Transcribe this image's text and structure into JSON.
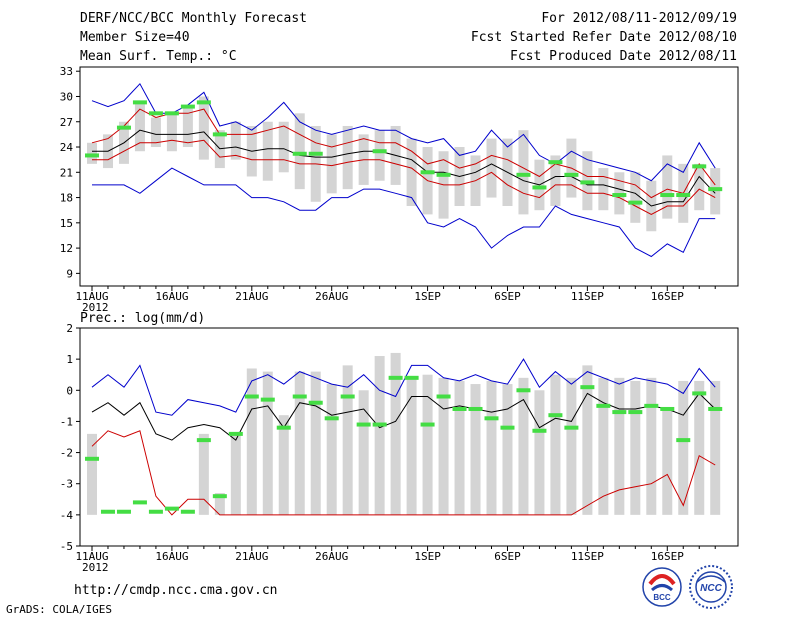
{
  "header": {
    "title": "DERF/NCC/BCC Monthly Forecast",
    "member_size": "Member Size=40",
    "variable": "Mean Surf. Temp.: °C",
    "period": "For 2012/08/11-2012/09/19",
    "started": "Fcst Started Refer Date 2012/08/10",
    "produced": "Fcst Produced Date 2012/08/11"
  },
  "footer": {
    "url": "http://cmdp.ncc.cma.gov.cn",
    "grads": "GrADS: COLA/IGES",
    "logo_bcc": "BCC",
    "logo_ncc": "NCC"
  },
  "colors": {
    "max": "#0000cc",
    "min": "#0000cc",
    "mean": "#000000",
    "spread": "#cc0000",
    "box": "#d4d4d4",
    "obs": "#44dd44"
  },
  "chart_data": [
    {
      "type": "box-line",
      "title": "Mean Surf. Temp.: °C",
      "categories": [
        "11AUG",
        "12AUG",
        "13AUG",
        "14AUG",
        "15AUG",
        "16AUG",
        "17AUG",
        "18AUG",
        "19AUG",
        "20AUG",
        "21AUG",
        "22AUG",
        "23AUG",
        "24AUG",
        "25AUG",
        "26AUG",
        "27AUG",
        "28AUG",
        "29AUG",
        "30AUG",
        "31AUG",
        "1SEP",
        "2SEP",
        "3SEP",
        "4SEP",
        "5SEP",
        "6SEP",
        "7SEP",
        "8SEP",
        "9SEP",
        "10SEP",
        "11SEP",
        "12SEP",
        "13SEP",
        "14SEP",
        "15SEP",
        "16SEP",
        "17SEP",
        "18SEP",
        "19SEP"
      ],
      "xtick_labels": [
        "11AUG",
        "16AUG",
        "21AUG",
        "26AUG",
        "1SEP",
        "6SEP",
        "11SEP",
        "16SEP"
      ],
      "xtick_index": [
        0,
        5,
        10,
        15,
        21,
        26,
        31,
        36
      ],
      "year_label": "2012",
      "ylim": [
        7.5,
        33.5
      ],
      "yticks": [
        9,
        12,
        15,
        18,
        21,
        24,
        27,
        30,
        33
      ],
      "series": [
        {
          "name": "max",
          "values": [
            29.5,
            28.8,
            29.5,
            31.5,
            28,
            28,
            29,
            30.5,
            26.5,
            27,
            26,
            27.5,
            29.3,
            27,
            26,
            25.5,
            26,
            26.5,
            26,
            26,
            25,
            24.5,
            25,
            23,
            23.5,
            26,
            24,
            25.5,
            23,
            22,
            23.5,
            22.5,
            22,
            21.5,
            21,
            20,
            22,
            21,
            24.5,
            21.5
          ]
        },
        {
          "name": "upper",
          "values": [
            24.5,
            25,
            26.5,
            28.5,
            27.5,
            28,
            28,
            28.5,
            25.5,
            25.5,
            25.5,
            26,
            26.5,
            25.5,
            24.5,
            24,
            24.5,
            25,
            24.5,
            24.5,
            23.5,
            22,
            22.5,
            21.5,
            22,
            23,
            22.5,
            21.5,
            20.5,
            22,
            21.5,
            20.5,
            20.5,
            20,
            19.5,
            18,
            19,
            18.5,
            22,
            19.5
          ]
        },
        {
          "name": "mean",
          "values": [
            23.5,
            23.5,
            24.5,
            26,
            25.5,
            25.5,
            25.5,
            25.8,
            23.8,
            24,
            23.5,
            23.8,
            23.8,
            23,
            22.8,
            22.8,
            23.2,
            23.5,
            23.5,
            23,
            22.5,
            21,
            21,
            20.5,
            21,
            22,
            21,
            20,
            19.5,
            20.5,
            20.5,
            19.5,
            19.5,
            19,
            18.5,
            17,
            17.5,
            17.5,
            20.5,
            18.5
          ]
        },
        {
          "name": "lower",
          "values": [
            22.5,
            22.5,
            23.5,
            24.5,
            24.5,
            24.8,
            24.5,
            24.8,
            22.8,
            23,
            22.5,
            22.5,
            22.5,
            22,
            22,
            21.8,
            22.2,
            22.5,
            22.5,
            22,
            21.5,
            20,
            19.5,
            19.5,
            20,
            21,
            19.5,
            18.5,
            18,
            19.5,
            19.5,
            18.5,
            18.5,
            18,
            17,
            16,
            17,
            17,
            19,
            18
          ]
        },
        {
          "name": "min",
          "values": [
            19.5,
            19.5,
            19.5,
            18.5,
            20,
            21.5,
            20.5,
            19.5,
            19.5,
            19.5,
            18,
            18,
            17.5,
            16.5,
            16.5,
            18,
            18,
            19,
            19,
            18.5,
            18,
            15,
            14.5,
            15.5,
            14.5,
            12,
            13.5,
            14.5,
            14.5,
            17,
            16,
            15.5,
            15,
            14.5,
            12,
            11,
            12.5,
            11.5,
            15.5,
            15.5
          ]
        },
        {
          "name": "box_high",
          "values": [
            24.5,
            25.5,
            27,
            29.5,
            27.5,
            28,
            29,
            30,
            26,
            27,
            26.5,
            27,
            27,
            28,
            26.5,
            25.5,
            26.5,
            25.5,
            26,
            26.5,
            25,
            24,
            23.5,
            24,
            23,
            25,
            25,
            26,
            22.5,
            23,
            25,
            23.5,
            21.5,
            21,
            21,
            20,
            23,
            22,
            22,
            21.5
          ]
        },
        {
          "name": "box_low",
          "values": [
            22,
            21.5,
            22,
            23.5,
            24,
            23.5,
            24,
            22.5,
            21.5,
            22.5,
            20.5,
            20,
            21,
            19,
            17.5,
            18.5,
            19,
            19.5,
            20,
            19.5,
            17,
            16,
            15.5,
            17,
            17,
            18,
            17,
            16,
            16.5,
            17,
            18,
            16.5,
            16.5,
            16,
            15,
            14,
            15.5,
            15,
            16.5,
            16
          ]
        },
        {
          "name": "obs",
          "values": [
            23,
            null,
            26.3,
            29.3,
            28,
            28,
            28.8,
            29.3,
            25.5,
            null,
            null,
            null,
            null,
            23.2,
            23.2,
            null,
            null,
            null,
            23.5,
            null,
            null,
            21,
            20.7,
            null,
            null,
            null,
            null,
            20.7,
            19.2,
            22.2,
            20.7,
            19.8,
            null,
            18.3,
            17.4,
            null,
            18.3,
            18.3,
            21.7,
            19
          ]
        }
      ]
    },
    {
      "type": "box-line",
      "title": "Prec.: log(mm/d)",
      "categories": [
        "11AUG",
        "12AUG",
        "13AUG",
        "14AUG",
        "15AUG",
        "16AUG",
        "17AUG",
        "18AUG",
        "19AUG",
        "20AUG",
        "21AUG",
        "22AUG",
        "23AUG",
        "24AUG",
        "25AUG",
        "26AUG",
        "27AUG",
        "28AUG",
        "29AUG",
        "30AUG",
        "31AUG",
        "1SEP",
        "2SEP",
        "3SEP",
        "4SEP",
        "5SEP",
        "6SEP",
        "7SEP",
        "8SEP",
        "9SEP",
        "10SEP",
        "11SEP",
        "12SEP",
        "13SEP",
        "14SEP",
        "15SEP",
        "16SEP",
        "17SEP",
        "18SEP",
        "19SEP"
      ],
      "xtick_labels": [
        "11AUG",
        "16AUG",
        "21AUG",
        "26AUG",
        "1SEP",
        "6SEP",
        "11SEP",
        "16SEP"
      ],
      "xtick_index": [
        0,
        5,
        10,
        15,
        21,
        26,
        31,
        36
      ],
      "year_label": "2012",
      "ylim": [
        -5,
        2
      ],
      "yticks": [
        -5,
        -4,
        -3,
        -2,
        -1,
        0,
        1,
        2
      ],
      "series": [
        {
          "name": "max",
          "values": [
            0.1,
            0.5,
            0.1,
            0.8,
            -0.7,
            -0.8,
            -0.3,
            -0.4,
            -0.5,
            -0.7,
            0.3,
            0.5,
            0.2,
            0.6,
            0.4,
            0.2,
            0.1,
            0.5,
            0,
            -0.2,
            0.8,
            0.8,
            0.4,
            0.3,
            0.5,
            0.3,
            0.2,
            1,
            0.1,
            0.6,
            0.2,
            0.6,
            0.4,
            0.2,
            0.4,
            0.3,
            0.2,
            -0.1,
            0.7,
            0.1
          ]
        },
        {
          "name": "mean",
          "values": [
            -0.7,
            -0.4,
            -0.8,
            -0.4,
            -1.4,
            -1.6,
            -1.2,
            -1.1,
            -1.2,
            -1.6,
            -0.6,
            -0.5,
            -1.2,
            -0.4,
            -0.5,
            -0.8,
            -0.7,
            -0.6,
            -1.2,
            -1,
            -0.2,
            -0.2,
            -0.6,
            -0.5,
            -0.6,
            -0.7,
            -0.6,
            -0.3,
            -1.2,
            -0.9,
            -1,
            -0.1,
            -0.4,
            -0.6,
            -0.6,
            -0.5,
            -0.6,
            -0.8,
            -0.1,
            -0.6
          ]
        },
        {
          "name": "spread",
          "values": [
            -1.8,
            -1.3,
            -1.5,
            -1.3,
            -3.4,
            -4,
            -3.5,
            -3.5,
            -4,
            -4,
            -4,
            -4,
            -4,
            -4,
            -4,
            -4,
            -4,
            -4,
            -4,
            -4,
            -4,
            -4,
            -4,
            -4,
            -4,
            -4,
            -4,
            -4,
            -4,
            -4,
            -4,
            -3.7,
            -3.4,
            -3.2,
            -3.1,
            -3,
            -2.7,
            -3.7,
            -2.1,
            -2.4
          ]
        },
        {
          "name": "box_high",
          "values": [
            -1.4,
            -4,
            -4,
            -4,
            -4,
            -4,
            -4,
            -1.4,
            -3.3,
            -1.4,
            0.7,
            0.6,
            -0.8,
            0.6,
            0.6,
            0.2,
            0.8,
            0,
            1.1,
            1.2,
            0.4,
            0.5,
            0.4,
            0.3,
            0.2,
            0.3,
            0.2,
            0.4,
            0,
            0.5,
            0.4,
            0.8,
            0.4,
            0.4,
            0.3,
            0.4,
            -0.6,
            0.3,
            0.3,
            0.3
          ]
        },
        {
          "name": "box_low",
          "values": [
            -4,
            -4,
            -4,
            -4,
            -4,
            -4,
            -4,
            -4,
            -4,
            -4,
            -4,
            -4,
            -4,
            -4,
            -4,
            -4,
            -4,
            -4,
            -4,
            -4,
            -4,
            -4,
            -4,
            -4,
            -4,
            -4,
            -4,
            -4,
            -4,
            -4,
            -4,
            -4,
            -4,
            -4,
            -4,
            -4,
            -4,
            -4,
            -4,
            -4
          ]
        },
        {
          "name": "obs",
          "values": [
            -2.2,
            -3.9,
            -3.9,
            -3.6,
            -3.9,
            -3.8,
            -3.9,
            -1.6,
            -3.4,
            -1.4,
            -0.2,
            -0.3,
            -1.2,
            -0.2,
            -0.4,
            -0.9,
            -0.2,
            -1.1,
            -1.1,
            0.4,
            0.4,
            -1.1,
            -0.2,
            -0.6,
            -0.6,
            -0.9,
            -1.2,
            0,
            -1.3,
            -0.8,
            -1.2,
            0.1,
            -0.5,
            -0.7,
            -0.7,
            -0.5,
            -0.6,
            -1.6,
            -0.1,
            -0.6
          ]
        }
      ]
    }
  ]
}
